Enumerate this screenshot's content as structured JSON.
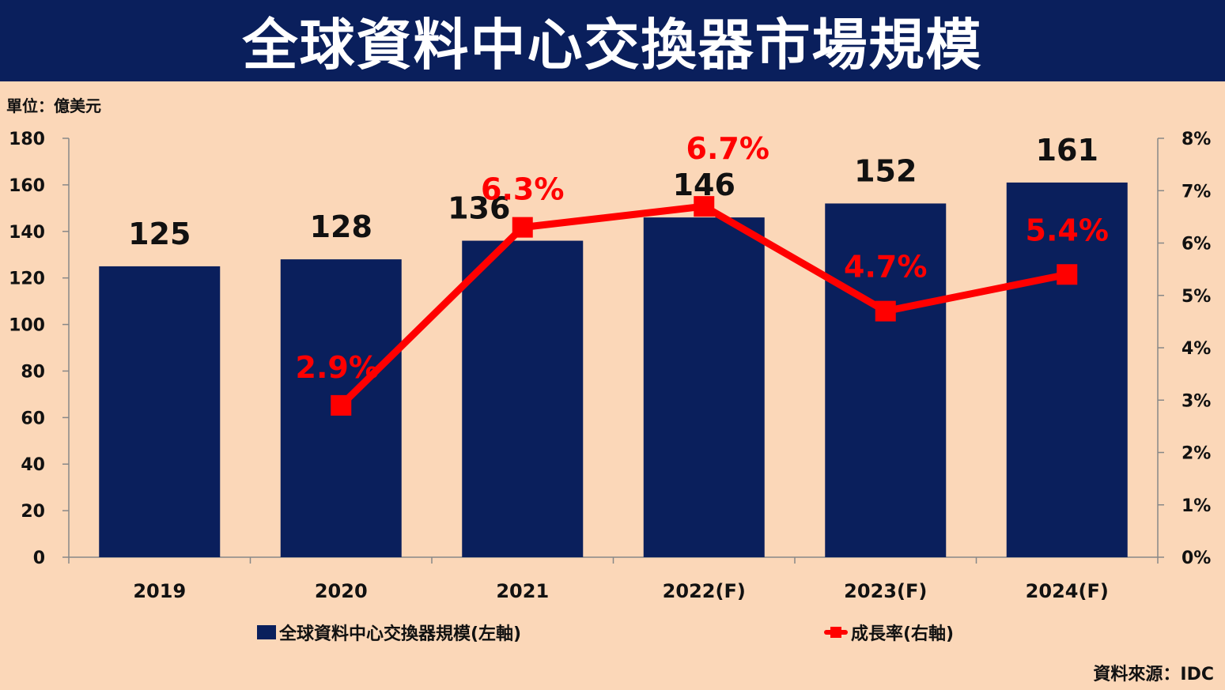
{
  "title": "全球資料中心交換器市場規模",
  "unit_label": "單位：億美元",
  "source_label": "資料來源：IDC",
  "colors": {
    "bar": "#0a1f5c",
    "line": "#ff0000",
    "background": "#fbd7b8"
  },
  "legend": {
    "bar_label": "全球資料中心交換器規模(左軸)",
    "line_label": "成長率(右軸)"
  },
  "chart_data": {
    "type": "bar",
    "categories": [
      "2019",
      "2020",
      "2021",
      "2022(F)",
      "2023(F)",
      "2024(F)"
    ],
    "series": [
      {
        "name": "全球資料中心交換器規模(左軸)",
        "type": "bar",
        "axis": "left",
        "values": [
          125,
          128,
          136,
          146,
          152,
          161
        ],
        "labels": [
          "125",
          "128",
          "136",
          "146",
          "152",
          "161"
        ]
      },
      {
        "name": "成長率(右軸)",
        "type": "line",
        "axis": "right",
        "values": [
          null,
          2.9,
          6.3,
          6.7,
          4.7,
          5.4
        ],
        "labels": [
          "",
          "2.9%",
          "6.3%",
          "6.7%",
          "4.7%",
          "5.4%"
        ]
      }
    ],
    "left_axis": {
      "ylim": [
        0,
        180
      ],
      "ticks": [
        "0",
        "20",
        "40",
        "60",
        "80",
        "100",
        "120",
        "140",
        "160",
        "180"
      ]
    },
    "right_axis": {
      "ylim": [
        0,
        8
      ],
      "ticks": [
        "0%",
        "1%",
        "2%",
        "3%",
        "4%",
        "5%",
        "6%",
        "7%",
        "8%"
      ]
    },
    "grid": false,
    "legend_position": "bottom"
  }
}
